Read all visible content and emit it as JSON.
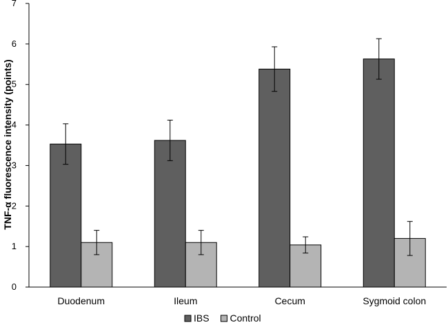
{
  "chart_data": {
    "type": "bar",
    "title": "",
    "xlabel": "",
    "ylabel": "TNF-α fluorescence intensity (points)",
    "ylim": [
      0,
      7
    ],
    "yticks": [
      "0",
      "1",
      "2",
      "3",
      "4",
      "5",
      "6",
      "7"
    ],
    "categories": [
      "Duodenum",
      "Ileum",
      "Cecum",
      "Sygmoid colon"
    ],
    "series": [
      {
        "name": "IBS",
        "color": "#5f5f5f",
        "values": [
          3.53,
          3.62,
          5.38,
          5.63
        ],
        "errors": [
          0.5,
          0.5,
          0.55,
          0.5
        ]
      },
      {
        "name": "Control",
        "color": "#b4b4b4",
        "values": [
          1.1,
          1.1,
          1.04,
          1.2
        ],
        "errors": [
          0.3,
          0.3,
          0.2,
          0.42
        ]
      }
    ],
    "legend_position": "bottom-center",
    "grid": false
  }
}
